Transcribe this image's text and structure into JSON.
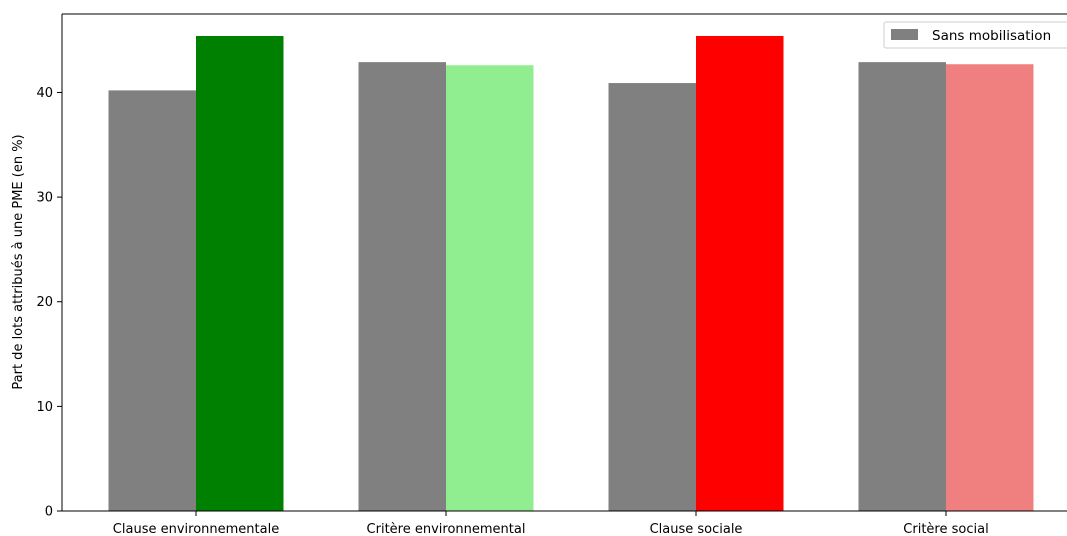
{
  "chart_data": {
    "type": "bar",
    "title": "",
    "xlabel": "",
    "ylabel": "Part de lots attribués à une PME (en %)",
    "categories": [
      "Clause environnementale",
      "Critère environnemental",
      "Clause sociale",
      "Critère social"
    ],
    "series": [
      {
        "name": "Sans mobilisation",
        "values": [
          40.2,
          42.9,
          40.9,
          42.9
        ],
        "colors": [
          "#808080",
          "#808080",
          "#808080",
          "#808080"
        ]
      },
      {
        "values": [
          45.4,
          42.6,
          45.4,
          42.7
        ],
        "colors": [
          "#008000",
          "#90ee90",
          "#ff0000",
          "#f08080"
        ]
      }
    ],
    "ylim": [
      0,
      47.5
    ],
    "yticks": [
      0,
      10,
      20,
      30,
      40
    ],
    "grid": false,
    "legend": "top-right"
  }
}
